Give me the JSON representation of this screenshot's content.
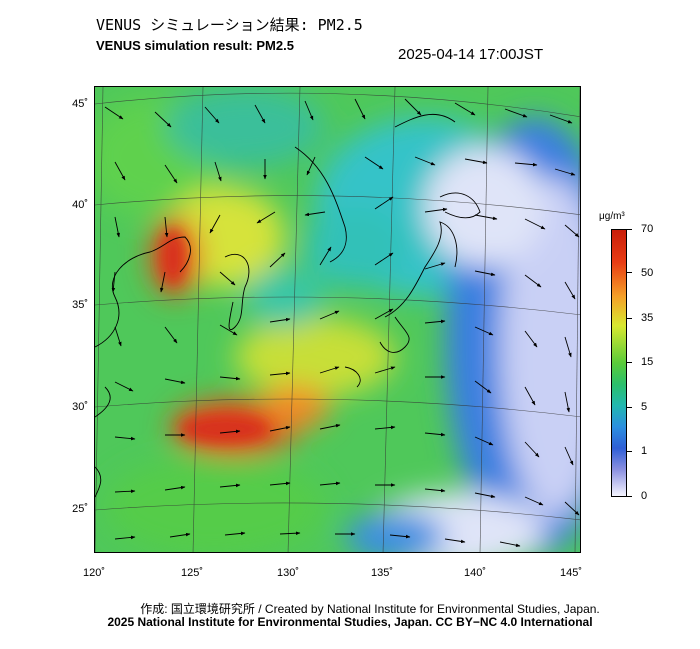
{
  "header": {
    "title_jp": "VENUS シミュレーション結果: PM2.5",
    "title_en": "VENUS simulation result: PM2.5",
    "timestamp": "2025-04-14 17:00JST"
  },
  "map": {
    "variable": "PM2.5",
    "lat_labels": [
      "45˚",
      "40˚",
      "35˚",
      "30˚",
      "25˚"
    ],
    "lon_labels": [
      "120˚",
      "125˚",
      "130˚",
      "135˚",
      "140˚",
      "145˚"
    ],
    "land_color": "#000000",
    "arrow_color": "#000000"
  },
  "colorbar": {
    "unit": "μg/m³",
    "labels": [
      "70",
      "50",
      "35",
      "15",
      "5",
      "1",
      "0"
    ],
    "colors": [
      "#c81e0a",
      "#f5a028",
      "#d8e830",
      "#5acb3a",
      "#22b8b0",
      "#2f5fd6",
      "#f5f5ff"
    ]
  },
  "footer": {
    "credit": "作成: 国立環境研究所 / Created by National Institute for Environmental Studies, Japan.",
    "license": "2025 National Institute for Environmental Studies, Japan. CC BY−NC 4.0 International"
  }
}
